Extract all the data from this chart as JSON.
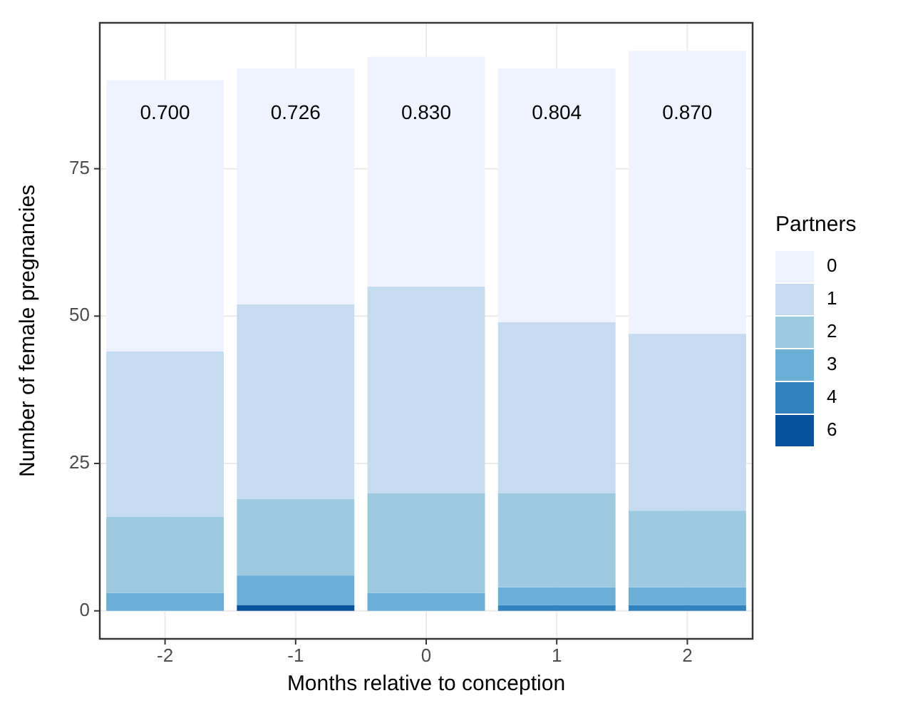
{
  "chart_data": {
    "type": "bar",
    "stacked": true,
    "xlabel": "Months relative to conception",
    "ylabel": "Number of female pregnancies",
    "legend_title": "Partners",
    "legend": "right",
    "grid": true,
    "categories": [
      "-2",
      "-1",
      "0",
      "1",
      "2"
    ],
    "series": [
      {
        "name": "6",
        "color": "#08519c",
        "values": [
          0,
          1,
          0,
          0,
          0
        ]
      },
      {
        "name": "4",
        "color": "#3182bd",
        "values": [
          0,
          0,
          0,
          1,
          1
        ]
      },
      {
        "name": "3",
        "color": "#6baed6",
        "values": [
          3,
          5,
          3,
          3,
          3
        ]
      },
      {
        "name": "2",
        "color": "#9ecae1",
        "values": [
          13,
          13,
          17,
          16,
          13
        ]
      },
      {
        "name": "1",
        "color": "#c6dbef",
        "values": [
          28,
          33,
          35,
          29,
          30
        ]
      },
      {
        "name": "0",
        "color": "#eff3ff",
        "values": [
          46,
          40,
          39,
          43,
          48
        ]
      }
    ],
    "ylim": [
      -4.75,
      99.75
    ],
    "yticks": [
      0,
      25,
      50,
      75
    ],
    "annotations": [
      "0.700",
      "0.726",
      "0.830",
      "0.804",
      "0.870"
    ]
  }
}
